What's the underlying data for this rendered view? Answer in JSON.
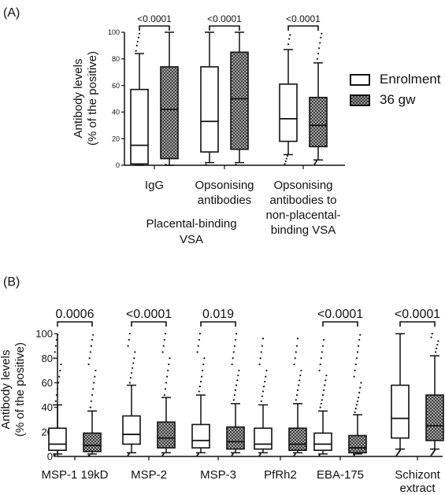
{
  "panels": [
    {
      "label": "(A)"
    },
    {
      "label": "(B)"
    }
  ],
  "legend": {
    "items": [
      {
        "label": "Enrolment",
        "pattern": "open"
      },
      {
        "label": "36 gw",
        "pattern": "checkered"
      }
    ]
  },
  "chart_data": [
    {
      "type": "box",
      "panel": "(A)",
      "ylabel_lines": [
        "Antibody levels",
        "(% of the positive)"
      ],
      "ylim": [
        0,
        100
      ],
      "yticks": [
        "0",
        "20",
        "40",
        "60",
        "80",
        "100"
      ],
      "series": [
        {
          "name": "Enrolment",
          "pattern": "open"
        },
        {
          "name": "36 gw",
          "pattern": "checkered"
        }
      ],
      "groups": [
        {
          "label_lines": [
            "IgG"
          ],
          "pvalue": "<0.0001",
          "boxes": [
            {
              "series": "Enrolment",
              "min": 0,
              "q1": 1,
              "median": 15,
              "q3": 57,
              "max": 84,
              "outliers": [
                86,
                90,
                93,
                96,
                99
              ]
            },
            {
              "series": "36 gw",
              "min": 0,
              "q1": 5,
              "median": 42,
              "q3": 74,
              "max": 100,
              "outliers": [
                0.5
              ]
            }
          ]
        },
        {
          "label_lines": [
            "Opsonising",
            "antibodies"
          ],
          "pvalue": "<0.0001",
          "boxes": [
            {
              "series": "Enrolment",
              "min": 2,
              "q1": 10,
              "median": 33,
              "q3": 74,
              "max": 100,
              "outliers": [
                0.5
              ]
            },
            {
              "series": "36 gw",
              "min": 2,
              "q1": 12,
              "median": 50,
              "q3": 85,
              "max": 100,
              "outliers": [
                0.5
              ]
            }
          ]
        },
        {
          "label_lines": [
            "Opsonising",
            "antibodies to",
            "non-placental-",
            "binding VSA"
          ],
          "pvalue": "<0.0001",
          "boxes": [
            {
              "series": "Enrolment",
              "min": 8,
              "q1": 18,
              "median": 35,
              "q3": 61,
              "max": 87,
              "outliers": [
                1,
                3,
                5,
                7,
                91,
                95,
                98
              ]
            },
            {
              "series": "36 gw",
              "min": 4,
              "q1": 14,
              "median": 30,
              "q3": 51,
              "max": 77,
              "outliers": [
                1,
                2,
                3,
                80,
                84,
                88,
                92,
                96,
                99
              ]
            }
          ]
        }
      ],
      "bracket_label_lines": [
        "Placental-binding",
        "VSA"
      ]
    },
    {
      "type": "box",
      "panel": "(B)",
      "ylabel_lines": [
        "Antibody levels",
        "(% of the positive)"
      ],
      "ylim": [
        0,
        100
      ],
      "yticks": [
        "0",
        "20",
        "40",
        "60",
        "80",
        "100"
      ],
      "series": [
        {
          "name": "Enrolment",
          "pattern": "open"
        },
        {
          "name": "36 gw",
          "pattern": "checkered"
        }
      ],
      "groups": [
        {
          "label_lines": [
            "MSP-1 19kD"
          ],
          "pvalue": "0.0006",
          "boxes": [
            {
              "series": "Enrolment",
              "min": 2,
              "q1": 5,
              "median": 10,
              "q3": 23,
              "max": 42,
              "outliers": [
                0.5,
                1,
                45,
                50,
                55,
                60,
                65,
                70,
                75,
                80,
                85,
                90,
                95,
                99
              ]
            },
            {
              "series": "36 gw",
              "min": 2,
              "q1": 4,
              "median": 9,
              "q3": 19,
              "max": 37,
              "outliers": [
                0.5,
                1,
                40,
                45,
                50,
                55,
                60,
                65,
                70,
                75,
                80,
                85,
                90,
                95,
                99
              ]
            }
          ]
        },
        {
          "label_lines": [
            "MSP-2"
          ],
          "pvalue": "<0.0001",
          "boxes": [
            {
              "series": "Enrolment",
              "min": 3,
              "q1": 10,
              "median": 18,
              "q3": 33,
              "max": 58,
              "outliers": [
                1,
                2,
                60,
                64,
                68,
                72,
                76,
                80,
                85,
                90,
                95,
                100
              ]
            },
            {
              "series": "36 gw",
              "min": 3,
              "q1": 7,
              "median": 15,
              "q3": 28,
              "max": 48,
              "outliers": [
                1,
                2,
                50,
                55,
                60,
                65,
                70,
                75,
                80,
                85,
                90,
                95,
                100
              ]
            }
          ]
        },
        {
          "label_lines": [
            "MSP-3"
          ],
          "pvalue": "0.019",
          "boxes": [
            {
              "series": "Enrolment",
              "min": 3,
              "q1": 7,
              "median": 13,
              "q3": 26,
              "max": 50,
              "outliers": [
                1,
                2,
                53,
                57,
                61,
                65,
                70,
                75,
                80,
                85,
                90,
                95,
                100
              ]
            },
            {
              "series": "36 gw",
              "min": 3,
              "q1": 6,
              "median": 12,
              "q3": 24,
              "max": 43,
              "outliers": [
                1,
                2,
                46,
                50,
                54,
                58,
                62,
                66,
                70,
                75,
                80,
                85,
                90,
                95,
                100
              ]
            }
          ]
        },
        {
          "label_lines": [
            "PfRh2"
          ],
          "pvalue": "",
          "boxes": [
            {
              "series": "Enrolment",
              "min": 3,
              "q1": 6,
              "median": 10,
              "q3": 23,
              "max": 42,
              "outliers": [
                1,
                2,
                45,
                49,
                53,
                57,
                61,
                65,
                70,
                75,
                80,
                85,
                90,
                96
              ]
            },
            {
              "series": "36 gw",
              "min": 3,
              "q1": 5,
              "median": 10,
              "q3": 23,
              "max": 43,
              "outliers": [
                1,
                2,
                46,
                50,
                54,
                58,
                62,
                66,
                70,
                75,
                80,
                85,
                90,
                96
              ]
            }
          ]
        },
        {
          "label_lines": [
            "EBA-175"
          ],
          "pvalue": "<0.0001",
          "boxes": [
            {
              "series": "Enrolment",
              "min": 2,
              "q1": 5,
              "median": 10,
              "q3": 19,
              "max": 37,
              "outliers": [
                1,
                40,
                43,
                46,
                50,
                54,
                58,
                62,
                66,
                70,
                75,
                80,
                85,
                90,
                95
              ]
            },
            {
              "series": "36 gw",
              "min": 2,
              "q1": 3,
              "median": 7,
              "q3": 17,
              "max": 34,
              "outliers": [
                1,
                36,
                39,
                42,
                45,
                48,
                52,
                56,
                60,
                65,
                70,
                75,
                80,
                85,
                90,
                95,
                99
              ]
            }
          ]
        },
        {
          "label_lines": [
            "Schizont",
            "extract"
          ],
          "pvalue": "<0.0001",
          "boxes": [
            {
              "series": "Enrolment",
              "min": 6,
              "q1": 15,
              "median": 31,
              "q3": 58,
              "max": 100,
              "outliers": [
                1,
                2,
                3,
                4,
                5
              ]
            },
            {
              "series": "36 gw",
              "min": 6,
              "q1": 13,
              "median": 25,
              "q3": 50,
              "max": 82,
              "outliers": [
                1,
                2,
                3,
                4,
                5,
                85,
                88,
                91,
                94,
                97,
                100
              ]
            }
          ]
        }
      ]
    }
  ]
}
